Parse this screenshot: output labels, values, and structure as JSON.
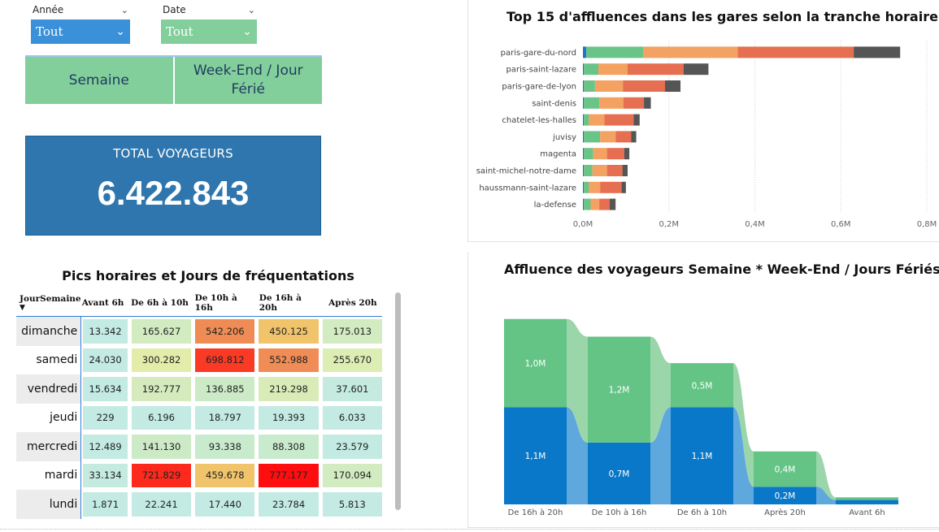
{
  "filters": {
    "annee": {
      "label": "Année",
      "value": "Tout",
      "color": "#3a91d9"
    },
    "date": {
      "label": "Date",
      "value": "Tout",
      "color": "#82cf9b"
    }
  },
  "toggles": {
    "semaine": "Semaine",
    "weekend": "Week-End / Jour Férié"
  },
  "kpi": {
    "title": "TOTAL VOYAGEURS",
    "value": "6.422.843"
  },
  "matrix": {
    "title": "Pics horaires et Jours de fréquentations",
    "row_header": "JourSemaine",
    "sort_icon": "sort-desc-icon",
    "columns": [
      "Avant 6h",
      "De 6h à 10h",
      "De 10h à 16h",
      "De 16h à 20h",
      "Après 20h"
    ],
    "rows": [
      {
        "day": "dimanche",
        "values": [
          "13.342",
          "165.627",
          "542.206",
          "450.125",
          "175.013"
        ],
        "colors": [
          "#c3ebe3",
          "#d2ebc0",
          "#ef8c55",
          "#f1c46b",
          "#d2ebc0"
        ]
      },
      {
        "day": "samedi",
        "values": [
          "24.030",
          "300.282",
          "698.812",
          "552.988",
          "255.670"
        ],
        "colors": [
          "#c3ebe3",
          "#e4ecaa",
          "#fb3a25",
          "#f08c55",
          "#dceeb4"
        ]
      },
      {
        "day": "vendredi",
        "values": [
          "15.634",
          "192.777",
          "136.885",
          "219.298",
          "37.601"
        ],
        "colors": [
          "#c3ebe3",
          "#d5ebbd",
          "#cdeac7",
          "#d9ecb8",
          "#c5ebe0"
        ]
      },
      {
        "day": "jeudi",
        "values": [
          "229",
          "6.196",
          "18.797",
          "19.393",
          "6.033"
        ],
        "colors": [
          "#c3ebe3",
          "#c3ebe3",
          "#c3ebe3",
          "#c3ebe3",
          "#c3ebe3"
        ]
      },
      {
        "day": "mercredi",
        "values": [
          "12.489",
          "141.130",
          "93.338",
          "88.308",
          "23.579"
        ],
        "colors": [
          "#c3ebe3",
          "#cdeac7",
          "#c9ebcd",
          "#c9ebcd",
          "#c3ebe3"
        ]
      },
      {
        "day": "mardi",
        "values": [
          "33.134",
          "721.829",
          "459.678",
          "777.177",
          "170.094"
        ],
        "colors": [
          "#c5ebe0",
          "#fc2a1d",
          "#f1c46b",
          "#ff0e10",
          "#d2ebc0"
        ]
      },
      {
        "day": "lundi",
        "values": [
          "1.871",
          "22.241",
          "17.440",
          "23.784",
          "5.813"
        ],
        "colors": [
          "#c3ebe3",
          "#c3ebe3",
          "#c3ebe3",
          "#c3ebe3",
          "#c3ebe3"
        ]
      }
    ]
  },
  "chart_data": [
    {
      "type": "bar",
      "orientation": "horizontal",
      "stacked": true,
      "title": "Top 15 d'affluences dans les gares selon la tranche horaire",
      "xlabel": "",
      "ylabel": "",
      "xlim": [
        0,
        0.8
      ],
      "x_ticks": [
        "0,0M",
        "0,2M",
        "0,4M",
        "0,6M",
        "0,8M"
      ],
      "grid": "vertical-dotted",
      "categories": [
        "paris-gare-du-nord",
        "paris-saint-lazare",
        "paris-gare-de-lyon",
        "saint-denis",
        "chatelet-les-halles",
        "juvisy",
        "magenta",
        "saint-michel-notre-dame",
        "haussmann-saint-lazare",
        "la-defense"
      ],
      "series": [
        {
          "color": "#1f77c4",
          "values": [
            0.008,
            0.002,
            0.002,
            0.002,
            0.002,
            0.002,
            0.002,
            0.002,
            0.002,
            0.002
          ]
        },
        {
          "color": "#6bc487",
          "values": [
            0.132,
            0.034,
            0.026,
            0.036,
            0.012,
            0.038,
            0.022,
            0.02,
            0.012,
            0.016
          ]
        },
        {
          "color": "#f4a261",
          "values": [
            0.22,
            0.068,
            0.065,
            0.056,
            0.036,
            0.036,
            0.032,
            0.034,
            0.026,
            0.02
          ]
        },
        {
          "color": "#e76f51",
          "values": [
            0.27,
            0.13,
            0.098,
            0.048,
            0.068,
            0.036,
            0.04,
            0.036,
            0.05,
            0.024
          ]
        },
        {
          "color": "#555555",
          "values": [
            0.108,
            0.058,
            0.036,
            0.016,
            0.014,
            0.012,
            0.012,
            0.012,
            0.01,
            0.014
          ]
        }
      ]
    },
    {
      "type": "bar",
      "stacked": true,
      "ribbon": true,
      "title": "Affluence des voyageurs Semaine * Week-End / Jours Fériés",
      "xlabel": "",
      "ylabel": "",
      "ylim": [
        0,
        2.3
      ],
      "categories": [
        "De 16h à 20h",
        "De 10h à 16h",
        "De 6h à 10h",
        "Après 20h",
        "Avant 6h"
      ],
      "series": [
        {
          "color": "#0a78c8",
          "values": [
            1.1,
            0.7,
            1.1,
            0.2,
            0.05
          ],
          "labels": [
            "1,1M",
            "0,7M",
            "1,1M",
            "0,2M",
            ""
          ]
        },
        {
          "color": "#64c486",
          "values": [
            1.0,
            1.2,
            0.5,
            0.4,
            0.03
          ],
          "labels": [
            "1,0M",
            "1,2M",
            "0,5M",
            "0,4M",
            ""
          ]
        }
      ]
    }
  ]
}
